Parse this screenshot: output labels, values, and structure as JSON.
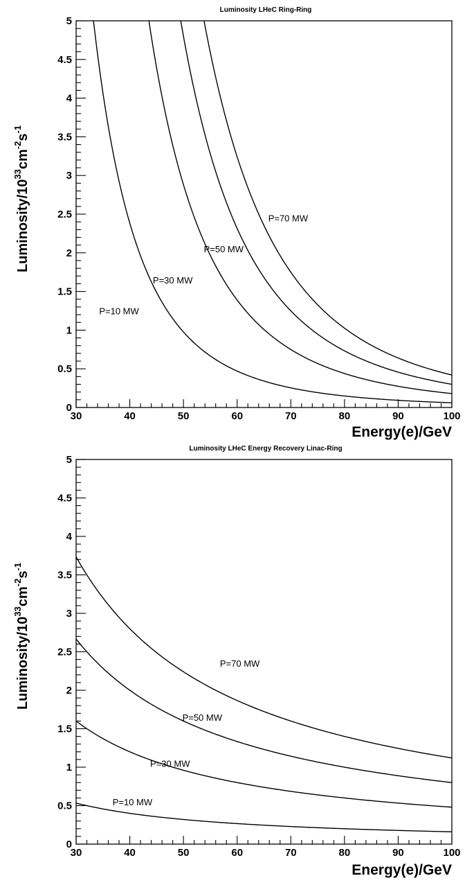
{
  "chart_data": [
    {
      "type": "line",
      "title": "Luminosity  LHeC Ring-Ring",
      "xlabel": "Energy(e)/GeV",
      "ylabel": {
        "base": "Luminosity/10",
        "exp1": "33",
        "mid": "cm",
        "exp2": "-2",
        "end": "s",
        "exp3": "-1"
      },
      "xlim": [
        30,
        100
      ],
      "ylim": [
        0,
        5
      ],
      "xticks": [
        30,
        40,
        50,
        60,
        70,
        80,
        90,
        100
      ],
      "yticks": [
        0,
        0.5,
        1,
        1.5,
        2,
        2.5,
        3,
        3.5,
        4,
        4.5,
        5
      ],
      "ytick_labels": [
        "0",
        "0.5",
        "1",
        "1.5",
        "2",
        "2.5",
        "3",
        "3.5",
        "4",
        "4.5",
        "5"
      ],
      "model": "L = k / E^4",
      "series": [
        {
          "name": "P=10 MW",
          "k": 6100000.0,
          "label_at": {
            "x": 38,
            "y": 1.25
          }
        },
        {
          "name": "P=30 MW",
          "k": 18000000.0,
          "label_at": {
            "x": 48,
            "y": 1.65
          }
        },
        {
          "name": "P=50 MW",
          "k": 30000000.0,
          "label_at": {
            "x": 57.5,
            "y": 2.05
          }
        },
        {
          "name": "P=70 MW",
          "k": 42000000.0,
          "label_at": {
            "x": 69.5,
            "y": 2.45
          }
        }
      ]
    },
    {
      "type": "line",
      "title": "Luminosity  LHeC Energy Recovery Linac-Ring",
      "xlabel": "Energy(e)/GeV",
      "ylabel": {
        "base": "Luminosity/10",
        "exp1": "33",
        "mid": "cm",
        "exp2": "-2",
        "end": "s",
        "exp3": "-1"
      },
      "xlim": [
        30,
        100
      ],
      "ylim": [
        0,
        5
      ],
      "xticks": [
        30,
        40,
        50,
        60,
        70,
        80,
        90,
        100
      ],
      "yticks": [
        0,
        0.5,
        1,
        1.5,
        2,
        2.5,
        3,
        3.5,
        4,
        4.5,
        5
      ],
      "ytick_labels": [
        "0",
        "0.5",
        "1",
        "1.5",
        "2",
        "2.5",
        "3",
        "3.5",
        "4",
        "4.5",
        "5"
      ],
      "model": "L = k / E",
      "series": [
        {
          "name": "P=10 MW",
          "k": 16,
          "label_at": {
            "x": 40.5,
            "y": 0.55
          }
        },
        {
          "name": "P=30 MW",
          "k": 48,
          "label_at": {
            "x": 47.5,
            "y": 1.05
          }
        },
        {
          "name": "P=50 MW",
          "k": 80,
          "label_at": {
            "x": 53.5,
            "y": 1.65
          }
        },
        {
          "name": "P=70 MW",
          "k": 112,
          "label_at": {
            "x": 60.5,
            "y": 2.35
          }
        }
      ]
    }
  ]
}
